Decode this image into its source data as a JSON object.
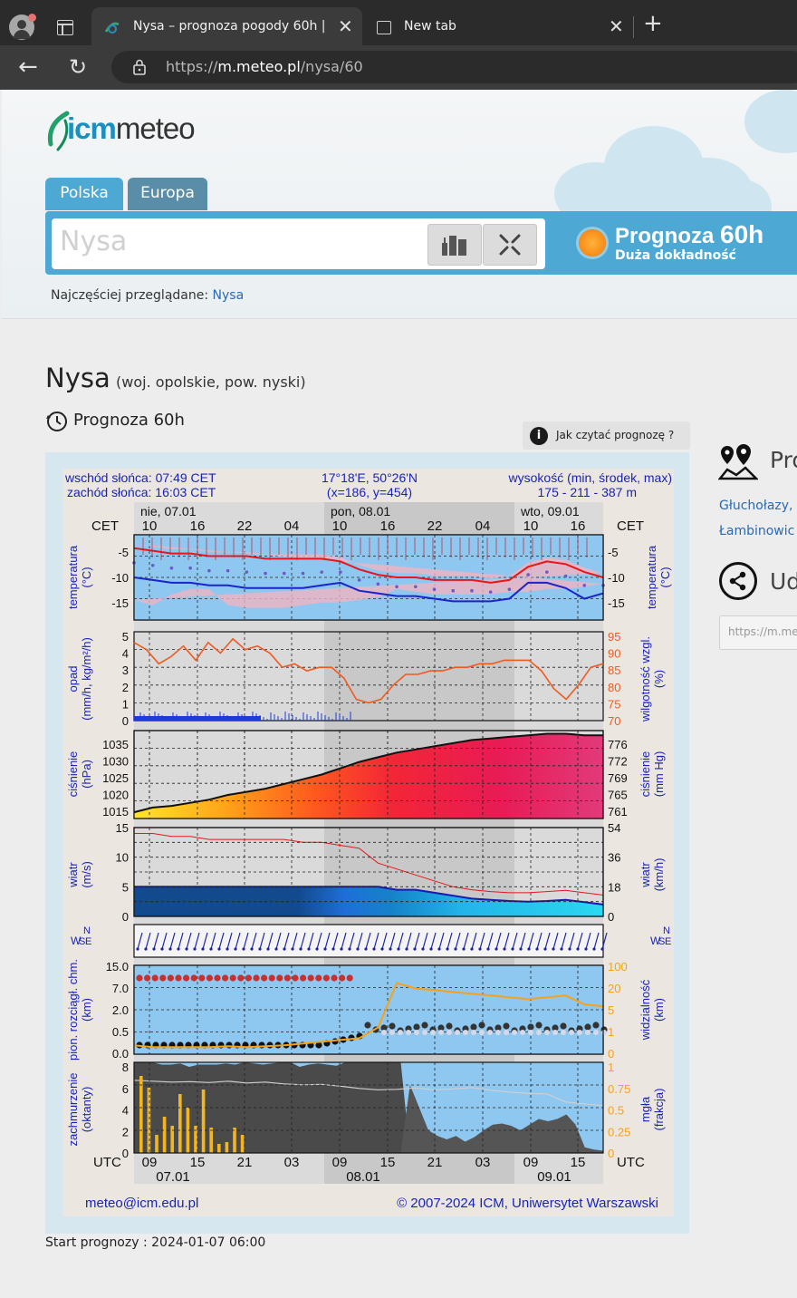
{
  "browser": {
    "tab_active_title": "Nysa – prognoza pogody 60h | ICM",
    "tab_new_title": "New tab",
    "url_prefix": "https://",
    "url_domain": "m.meteo.pl",
    "url_path": "/nysa/60"
  },
  "site": {
    "logo_part1": "icm",
    "logo_part2": "meteo",
    "tabs": [
      "Polska",
      "Europa"
    ],
    "search_value": "Nysa",
    "forecast_badge_title": "Prognoza",
    "forecast_badge_hours": "60h",
    "forecast_badge_sub": "Duża dokładność",
    "most_viewed_label": "Najczęściej przeglądane:",
    "most_viewed_link": "Nysa"
  },
  "location": {
    "name": "Nysa",
    "region": "(woj. opolskie, pow. nyski)",
    "forecast_label": "Prognoza 60h",
    "howto_label": "Jak czytać prognozę ?"
  },
  "sidebar": {
    "section1_title": "Pro",
    "links": [
      "Głuchołazy,",
      "Łambinowic"
    ],
    "section2_title": "Ud",
    "share_url": "https://m.me"
  },
  "meteogram": {
    "sunrise": "wschód słońca: 07:49 CET",
    "sunset": "zachód słońca: 16:03 CET",
    "coords": "17°18'E, 50°26'N",
    "grid": "(x=186,  y=454)",
    "elevation_label": "wysokość (min, środek, max)",
    "elevation_values": "175 - 211 - 387 m",
    "days_top": [
      "nie, 07.01",
      "pon, 08.01",
      "wto, 09.01"
    ],
    "tz_top": "CET",
    "hours_top": [
      "10",
      "16",
      "22",
      "04",
      "10",
      "16",
      "22",
      "04",
      "10",
      "16"
    ],
    "tz_bottom": "UTC",
    "hours_bottom": [
      "09",
      "15",
      "21",
      "03",
      "09",
      "15",
      "21",
      "03",
      "09",
      "15"
    ],
    "days_bottom": [
      "07.01",
      "08.01",
      "09.01"
    ],
    "panel_temp": {
      "left_label": "temperatura",
      "left_unit": "(°C)",
      "right_label": "temperatura",
      "right_unit": "(°C)",
      "ticks": [
        "-5",
        "-10",
        "-15"
      ]
    },
    "panel_precip": {
      "left_label": "opad",
      "left_unit": "(mm/h, kg/m²/h)",
      "right_label": "wilgotność wzgl.",
      "right_unit": "(%)",
      "ticks_left": [
        "5",
        "4",
        "3",
        "2",
        "1",
        "0"
      ],
      "ticks_right": [
        "95",
        "90",
        "85",
        "80",
        "75",
        "70"
      ]
    },
    "panel_pressure": {
      "left_label": "ciśnienie",
      "left_unit": "(hPa)",
      "right_label": "ciśnienie",
      "right_unit": "(mm Hg)",
      "ticks_left": [
        "1035",
        "1030",
        "1025",
        "1020",
        "1015"
      ],
      "ticks_right": [
        "776",
        "772",
        "769",
        "765",
        "761"
      ]
    },
    "panel_wind": {
      "left_label": "wiatr",
      "left_unit": "(m/s)",
      "right_label": "wiatr",
      "right_unit": "(km/h)",
      "ticks_left": [
        "15",
        "10",
        "5",
        "0"
      ],
      "ticks_right": [
        "54",
        "36",
        "18",
        "0"
      ]
    },
    "panel_winddir": {
      "compass": [
        "N",
        "W",
        "E",
        "S"
      ]
    },
    "panel_vis": {
      "left_label": "pion. rozciągł. chm.",
      "left_unit": "(km)",
      "right_label": "widzialność",
      "right_unit": "(km)",
      "ticks_left": [
        "15.0",
        "7.0",
        "2.0",
        "0.5",
        "0.0"
      ],
      "ticks_right": [
        "100",
        "20",
        "5",
        "1",
        "0"
      ]
    },
    "panel_cloud": {
      "left_label": "zachmurzenie",
      "left_unit": "(oktanty)",
      "right_label": "mgła",
      "right_unit": "(frakcja)",
      "ticks_left": [
        "8",
        "6",
        "4",
        "2",
        "0"
      ],
      "ticks_right": [
        "1",
        "0.75",
        "0.5",
        "0.25",
        "0"
      ]
    },
    "footer_email": "meteo@icm.edu.pl",
    "footer_copyright": "© 2007-2024 ICM, Uniwersytet Warszawski",
    "colors": {
      "temp_max": "#e8161b",
      "temp_min": "#1a24c8",
      "humidity": "#f05a20",
      "wind": "#e8161b",
      "vis": "#f5a21a"
    }
  },
  "start_label": "Start prognozy : 2024-01-07 06:00"
}
